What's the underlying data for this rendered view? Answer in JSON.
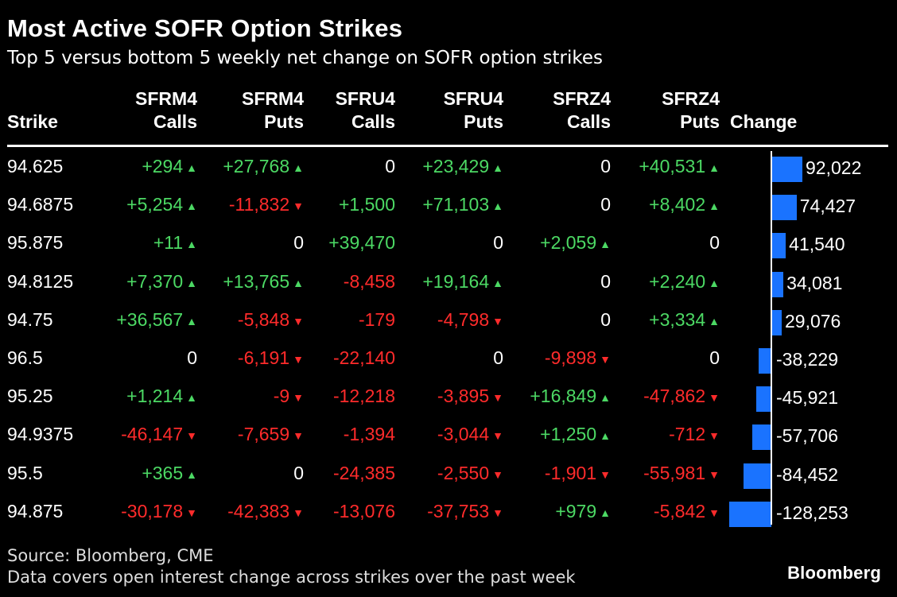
{
  "title": "Most Active SOFR Option Strikes",
  "subtitle": "Top 5 versus bottom 5 weekly net change on SOFR option strikes",
  "headers": {
    "strike": "Strike",
    "cols": [
      {
        "l1": "SFRM4",
        "l2": "Calls"
      },
      {
        "l1": "SFRM4",
        "l2": "Puts"
      },
      {
        "l1": "SFRU4",
        "l2": "Calls"
      },
      {
        "l1": "SFRU4",
        "l2": "Puts"
      },
      {
        "l1": "SFRZ4",
        "l2": "Calls"
      },
      {
        "l1": "SFRZ4",
        "l2": "Puts"
      }
    ],
    "change": "Change"
  },
  "chart_data": {
    "type": "table",
    "columns": [
      "Strike",
      "SFRM4 Calls",
      "SFRM4 Puts",
      "SFRU4 Calls",
      "SFRU4 Puts",
      "SFRZ4 Calls",
      "SFRZ4 Puts",
      "Change"
    ],
    "rows": [
      {
        "strike": "94.625",
        "cells": [
          {
            "text": "+294",
            "arrow": "up"
          },
          {
            "text": "+27,768",
            "arrow": "up"
          },
          {
            "text": "0",
            "arrow": ""
          },
          {
            "text": "+23,429",
            "arrow": "up"
          },
          {
            "text": "0",
            "arrow": ""
          },
          {
            "text": "+40,531",
            "arrow": "up"
          }
        ],
        "change": 92022,
        "change_label": "92,022"
      },
      {
        "strike": "94.6875",
        "cells": [
          {
            "text": "+5,254",
            "arrow": "up"
          },
          {
            "text": "-11,832",
            "arrow": "down"
          },
          {
            "text": "+1,500",
            "arrow": ""
          },
          {
            "text": "+71,103",
            "arrow": "up"
          },
          {
            "text": "0",
            "arrow": ""
          },
          {
            "text": "+8,402",
            "arrow": "up"
          }
        ],
        "change": 74427,
        "change_label": "74,427"
      },
      {
        "strike": "95.875",
        "cells": [
          {
            "text": "+11",
            "arrow": "up"
          },
          {
            "text": "0",
            "arrow": ""
          },
          {
            "text": "+39,470",
            "arrow": ""
          },
          {
            "text": "0",
            "arrow": ""
          },
          {
            "text": "+2,059",
            "arrow": "up"
          },
          {
            "text": "0",
            "arrow": ""
          }
        ],
        "change": 41540,
        "change_label": "41,540"
      },
      {
        "strike": "94.8125",
        "cells": [
          {
            "text": "+7,370",
            "arrow": "up"
          },
          {
            "text": "+13,765",
            "arrow": "up"
          },
          {
            "text": "-8,458",
            "arrow": ""
          },
          {
            "text": "+19,164",
            "arrow": "up"
          },
          {
            "text": "0",
            "arrow": ""
          },
          {
            "text": "+2,240",
            "arrow": "up"
          }
        ],
        "change": 34081,
        "change_label": "34,081"
      },
      {
        "strike": "94.75",
        "cells": [
          {
            "text": "+36,567",
            "arrow": "up"
          },
          {
            "text": "-5,848",
            "arrow": "down"
          },
          {
            "text": "-179",
            "arrow": ""
          },
          {
            "text": "-4,798",
            "arrow": "down"
          },
          {
            "text": "0",
            "arrow": ""
          },
          {
            "text": "+3,334",
            "arrow": "up"
          }
        ],
        "change": 29076,
        "change_label": "29,076"
      },
      {
        "strike": "96.5",
        "cells": [
          {
            "text": "0",
            "arrow": ""
          },
          {
            "text": "-6,191",
            "arrow": "down"
          },
          {
            "text": "-22,140",
            "arrow": ""
          },
          {
            "text": "0",
            "arrow": ""
          },
          {
            "text": "-9,898",
            "arrow": "down"
          },
          {
            "text": "0",
            "arrow": ""
          }
        ],
        "change": -38229,
        "change_label": "-38,229"
      },
      {
        "strike": "95.25",
        "cells": [
          {
            "text": "+1,214",
            "arrow": "up"
          },
          {
            "text": "-9",
            "arrow": "down"
          },
          {
            "text": "-12,218",
            "arrow": ""
          },
          {
            "text": "-3,895",
            "arrow": "down"
          },
          {
            "text": "+16,849",
            "arrow": "up"
          },
          {
            "text": "-47,862",
            "arrow": "down"
          }
        ],
        "change": -45921,
        "change_label": "-45,921"
      },
      {
        "strike": "94.9375",
        "cells": [
          {
            "text": "-46,147",
            "arrow": "down"
          },
          {
            "text": "-7,659",
            "arrow": "down"
          },
          {
            "text": "-1,394",
            "arrow": ""
          },
          {
            "text": "-3,044",
            "arrow": "down"
          },
          {
            "text": "+1,250",
            "arrow": "up"
          },
          {
            "text": "-712",
            "arrow": "down"
          }
        ],
        "change": -57706,
        "change_label": "-57,706"
      },
      {
        "strike": "95.5",
        "cells": [
          {
            "text": "+365",
            "arrow": "up"
          },
          {
            "text": "0",
            "arrow": ""
          },
          {
            "text": "-24,385",
            "arrow": ""
          },
          {
            "text": "-2,550",
            "arrow": "down"
          },
          {
            "text": "-1,901",
            "arrow": "down"
          },
          {
            "text": "-55,981",
            "arrow": "down"
          }
        ],
        "change": -84452,
        "change_label": "-84,452"
      },
      {
        "strike": "94.875",
        "cells": [
          {
            "text": "-30,178",
            "arrow": "down"
          },
          {
            "text": "-42,383",
            "arrow": "down"
          },
          {
            "text": "-13,076",
            "arrow": ""
          },
          {
            "text": "-37,753",
            "arrow": "down"
          },
          {
            "text": "+979",
            "arrow": "up"
          },
          {
            "text": "-5,842",
            "arrow": "down"
          }
        ],
        "change": -128253,
        "change_label": "-128,253"
      }
    ]
  },
  "colors": {
    "positive": "#4cd964",
    "negative": "#ff2b2b",
    "bar": "#1a73ff",
    "background": "#000000"
  },
  "footer": {
    "source": "Source: Bloomberg, CME",
    "note": "Data covers open interest change across strikes over the past week",
    "logo": "Bloomberg"
  }
}
